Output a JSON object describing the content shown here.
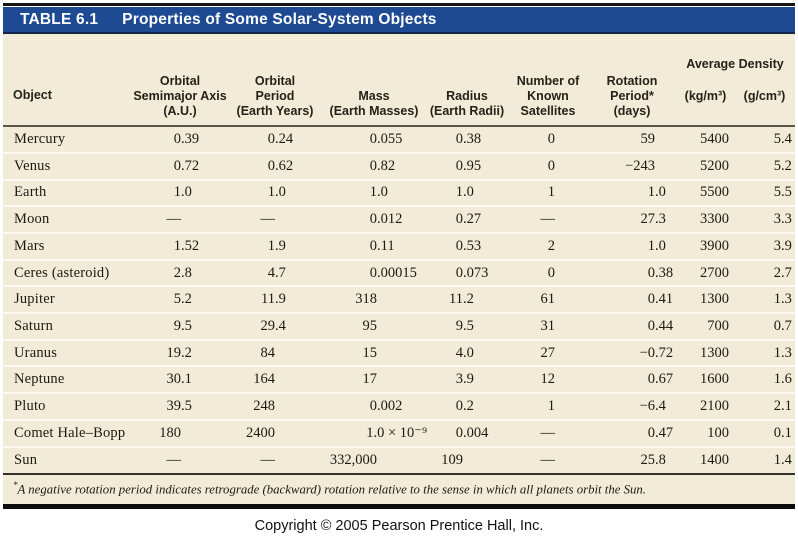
{
  "title_bar": {
    "label": "TABLE 6.1",
    "title": "Properties of Some Solar-System Objects"
  },
  "table": {
    "column_ids": [
      "object",
      "orbital_semimajor_axis_au",
      "orbital_period_earth_years",
      "mass_earth_masses",
      "radius_earth_radii",
      "number_known_satellites",
      "rotation_period_days",
      "avg_density_kg_m3",
      "avg_density_g_cm3"
    ],
    "columns": [
      {
        "header": "Object"
      },
      {
        "header": "Orbital\nSemimajor Axis\n(A.U.)"
      },
      {
        "header": "Orbital\nPeriod\n(Earth Years)"
      },
      {
        "header": "Mass\n(Earth Masses)"
      },
      {
        "header": "Radius\n(Earth Radii)"
      },
      {
        "header": "Number of\nKnown\nSatellites"
      },
      {
        "header": "Rotation\nPeriod*\n(days)"
      }
    ],
    "density_group": {
      "title": "Average Density",
      "units": [
        "(kg/m³)",
        "(g/cm³)"
      ]
    },
    "rows": [
      {
        "object": "Mercury",
        "values": [
          "0.39",
          "0.24",
          "0.055",
          "0.38",
          "0",
          "59",
          "5400",
          "5.4"
        ]
      },
      {
        "object": "Venus",
        "values": [
          "0.72",
          "0.62",
          "0.82",
          "0.95",
          "0",
          "−243",
          "5200",
          "5.2"
        ]
      },
      {
        "object": "Earth",
        "values": [
          "1.0",
          "1.0",
          "1.0",
          "1.0",
          "1",
          "1.0",
          "5500",
          "5.5"
        ]
      },
      {
        "object": "Moon",
        "values": [
          "—",
          "—",
          "0.012",
          "0.27",
          "—",
          "27.3",
          "3300",
          "3.3"
        ]
      },
      {
        "object": "Mars",
        "values": [
          "1.52",
          "1.9",
          "0.11",
          "0.53",
          "2",
          "1.0",
          "3900",
          "3.9"
        ]
      },
      {
        "object": "Ceres (asteroid)",
        "values": [
          "2.8",
          "4.7",
          "0.00015",
          "0.073",
          "0",
          "0.38",
          "2700",
          "2.7"
        ]
      },
      {
        "object": "Jupiter",
        "values": [
          "5.2",
          "11.9",
          "318",
          "11.2",
          "61",
          "0.41",
          "1300",
          "1.3"
        ]
      },
      {
        "object": "Saturn",
        "values": [
          "9.5",
          "29.4",
          "95",
          "9.5",
          "31",
          "0.44",
          "700",
          "0.7"
        ]
      },
      {
        "object": "Uranus",
        "values": [
          "19.2",
          "84",
          "15",
          "4.0",
          "27",
          "−0.72",
          "1300",
          "1.3"
        ]
      },
      {
        "object": "Neptune",
        "values": [
          "30.1",
          "164",
          "17",
          "3.9",
          "12",
          "0.67",
          "1600",
          "1.6"
        ]
      },
      {
        "object": "Pluto",
        "values": [
          "39.5",
          "248",
          "0.002",
          "0.2",
          "1",
          "−6.4",
          "2100",
          "2.1"
        ]
      },
      {
        "object": "Comet Hale–Bopp",
        "values": [
          "180",
          "2400",
          "1.0 × 10⁻⁹",
          "0.004",
          "—",
          "0.47",
          "100",
          "0.1"
        ]
      },
      {
        "object": "Sun",
        "values": [
          "—",
          "—",
          "332,000",
          "109",
          "—",
          "25.8",
          "1400",
          "1.4"
        ]
      }
    ],
    "footnote_marker": "*",
    "footnote": "A negative rotation period indicates retrograde (backward) rotation relative to the sense in which all planets orbit the Sun."
  },
  "copyright": "Copyright © 2005 Pearson Prentice Hall, Inc.",
  "colors": {
    "title_bar_bg": "#1d4a92",
    "table_bg": "#f1ebd8",
    "title_text": "#ffffff",
    "rule_dark": "#0d0d0d"
  }
}
